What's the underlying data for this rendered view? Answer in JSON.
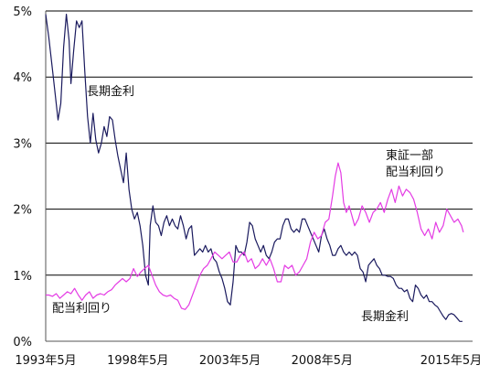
{
  "chart_data": {
    "type": "line",
    "title": "",
    "xlabel": "",
    "ylabel": "",
    "ylim": [
      0,
      5
    ],
    "grid": true,
    "y_ticks": [
      "0%",
      "1%",
      "2%",
      "3%",
      "4%",
      "5%"
    ],
    "y_tick_values": [
      0,
      1,
      2,
      3,
      4,
      5
    ],
    "x_ticks": [
      "1993年5月",
      "1998年5月",
      "2003年5月",
      "2008年5月",
      "2015年5月"
    ],
    "x_tick_values": [
      1993.33,
      1998.33,
      2003.33,
      2008.33,
      2015.33
    ],
    "xlim": [
      1993.33,
      2016.5
    ],
    "annotations": {
      "long_rate_top": "長期金利",
      "long_rate_bottom": "長期金利",
      "dividend_bottom": "配当利回り",
      "tse_line1": "東証一部",
      "tse_line2": "配当利回り"
    },
    "series": [
      {
        "name": "長期金利",
        "color": "#1a1a5e",
        "points": [
          [
            1993.33,
            4.95
          ],
          [
            1993.5,
            4.6
          ],
          [
            1993.7,
            4.1
          ],
          [
            1993.9,
            3.6
          ],
          [
            1994.0,
            3.35
          ],
          [
            1994.15,
            3.6
          ],
          [
            1994.3,
            4.45
          ],
          [
            1994.45,
            4.95
          ],
          [
            1994.6,
            4.55
          ],
          [
            1994.7,
            3.9
          ],
          [
            1994.85,
            4.4
          ],
          [
            1995.0,
            4.85
          ],
          [
            1995.15,
            4.75
          ],
          [
            1995.3,
            4.85
          ],
          [
            1995.45,
            4.1
          ],
          [
            1995.6,
            3.4
          ],
          [
            1995.75,
            3.0
          ],
          [
            1995.9,
            3.45
          ],
          [
            1996.05,
            3.05
          ],
          [
            1996.2,
            2.85
          ],
          [
            1996.35,
            3.0
          ],
          [
            1996.5,
            3.25
          ],
          [
            1996.65,
            3.1
          ],
          [
            1996.8,
            3.4
          ],
          [
            1996.95,
            3.35
          ],
          [
            1997.1,
            3.05
          ],
          [
            1997.25,
            2.8
          ],
          [
            1997.4,
            2.6
          ],
          [
            1997.55,
            2.4
          ],
          [
            1997.7,
            2.85
          ],
          [
            1997.85,
            2.3
          ],
          [
            1998.0,
            2.0
          ],
          [
            1998.15,
            1.85
          ],
          [
            1998.3,
            1.95
          ],
          [
            1998.45,
            1.75
          ],
          [
            1998.6,
            1.45
          ],
          [
            1998.75,
            1.0
          ],
          [
            1998.9,
            0.85
          ],
          [
            1999.0,
            1.75
          ],
          [
            1999.15,
            2.05
          ],
          [
            1999.3,
            1.8
          ],
          [
            1999.45,
            1.75
          ],
          [
            1999.6,
            1.6
          ],
          [
            1999.75,
            1.8
          ],
          [
            1999.9,
            1.9
          ],
          [
            2000.05,
            1.75
          ],
          [
            2000.2,
            1.85
          ],
          [
            2000.35,
            1.75
          ],
          [
            2000.5,
            1.7
          ],
          [
            2000.65,
            1.9
          ],
          [
            2000.8,
            1.75
          ],
          [
            2000.95,
            1.55
          ],
          [
            2001.1,
            1.7
          ],
          [
            2001.25,
            1.75
          ],
          [
            2001.4,
            1.3
          ],
          [
            2001.55,
            1.35
          ],
          [
            2001.7,
            1.4
          ],
          [
            2001.85,
            1.35
          ],
          [
            2002.0,
            1.45
          ],
          [
            2002.15,
            1.35
          ],
          [
            2002.3,
            1.4
          ],
          [
            2002.45,
            1.25
          ],
          [
            2002.6,
            1.2
          ],
          [
            2002.75,
            1.05
          ],
          [
            2002.9,
            0.95
          ],
          [
            2003.05,
            0.8
          ],
          [
            2003.2,
            0.6
          ],
          [
            2003.35,
            0.55
          ],
          [
            2003.5,
            0.9
          ],
          [
            2003.65,
            1.45
          ],
          [
            2003.8,
            1.35
          ],
          [
            2003.95,
            1.35
          ],
          [
            2004.1,
            1.3
          ],
          [
            2004.25,
            1.5
          ],
          [
            2004.4,
            1.8
          ],
          [
            2004.55,
            1.75
          ],
          [
            2004.7,
            1.55
          ],
          [
            2004.85,
            1.45
          ],
          [
            2005.0,
            1.35
          ],
          [
            2005.15,
            1.45
          ],
          [
            2005.3,
            1.3
          ],
          [
            2005.45,
            1.25
          ],
          [
            2005.6,
            1.35
          ],
          [
            2005.75,
            1.5
          ],
          [
            2005.9,
            1.55
          ],
          [
            2006.05,
            1.55
          ],
          [
            2006.2,
            1.75
          ],
          [
            2006.35,
            1.85
          ],
          [
            2006.5,
            1.85
          ],
          [
            2006.65,
            1.7
          ],
          [
            2006.8,
            1.65
          ],
          [
            2006.95,
            1.7
          ],
          [
            2007.1,
            1.65
          ],
          [
            2007.25,
            1.85
          ],
          [
            2007.4,
            1.85
          ],
          [
            2007.55,
            1.75
          ],
          [
            2007.7,
            1.65
          ],
          [
            2007.85,
            1.55
          ],
          [
            2008.0,
            1.45
          ],
          [
            2008.15,
            1.35
          ],
          [
            2008.3,
            1.6
          ],
          [
            2008.45,
            1.7
          ],
          [
            2008.6,
            1.55
          ],
          [
            2008.75,
            1.45
          ],
          [
            2008.9,
            1.3
          ],
          [
            2009.05,
            1.3
          ],
          [
            2009.2,
            1.4
          ],
          [
            2009.35,
            1.45
          ],
          [
            2009.5,
            1.35
          ],
          [
            2009.65,
            1.3
          ],
          [
            2009.8,
            1.35
          ],
          [
            2009.95,
            1.3
          ],
          [
            2010.1,
            1.35
          ],
          [
            2010.25,
            1.3
          ],
          [
            2010.4,
            1.1
          ],
          [
            2010.55,
            1.05
          ],
          [
            2010.7,
            0.9
          ],
          [
            2010.85,
            1.15
          ],
          [
            2011.0,
            1.2
          ],
          [
            2011.15,
            1.25
          ],
          [
            2011.3,
            1.15
          ],
          [
            2011.45,
            1.1
          ],
          [
            2011.6,
            1.0
          ],
          [
            2011.75,
            1.0
          ],
          [
            2011.9,
            0.98
          ],
          [
            2012.05,
            0.98
          ],
          [
            2012.2,
            0.95
          ],
          [
            2012.35,
            0.85
          ],
          [
            2012.5,
            0.8
          ],
          [
            2012.65,
            0.8
          ],
          [
            2012.8,
            0.75
          ],
          [
            2012.95,
            0.78
          ],
          [
            2013.1,
            0.65
          ],
          [
            2013.25,
            0.6
          ],
          [
            2013.4,
            0.85
          ],
          [
            2013.55,
            0.8
          ],
          [
            2013.7,
            0.7
          ],
          [
            2013.85,
            0.65
          ],
          [
            2014.0,
            0.7
          ],
          [
            2014.15,
            0.6
          ],
          [
            2014.3,
            0.6
          ],
          [
            2014.45,
            0.55
          ],
          [
            2014.6,
            0.52
          ],
          [
            2014.75,
            0.45
          ],
          [
            2014.9,
            0.38
          ],
          [
            2015.05,
            0.33
          ],
          [
            2015.2,
            0.4
          ],
          [
            2015.35,
            0.42
          ],
          [
            2015.5,
            0.4
          ],
          [
            2015.65,
            0.35
          ],
          [
            2015.8,
            0.3
          ],
          [
            2015.95,
            0.3
          ]
        ]
      },
      {
        "name": "配当利回り",
        "color": "#e43be4",
        "points": [
          [
            1993.33,
            0.7
          ],
          [
            1993.5,
            0.7
          ],
          [
            1993.7,
            0.68
          ],
          [
            1993.9,
            0.72
          ],
          [
            1994.1,
            0.65
          ],
          [
            1994.3,
            0.7
          ],
          [
            1994.5,
            0.75
          ],
          [
            1994.7,
            0.72
          ],
          [
            1994.9,
            0.8
          ],
          [
            1995.1,
            0.7
          ],
          [
            1995.3,
            0.62
          ],
          [
            1995.5,
            0.7
          ],
          [
            1995.7,
            0.75
          ],
          [
            1995.9,
            0.65
          ],
          [
            1996.1,
            0.7
          ],
          [
            1996.3,
            0.72
          ],
          [
            1996.5,
            0.7
          ],
          [
            1996.7,
            0.75
          ],
          [
            1996.9,
            0.78
          ],
          [
            1997.1,
            0.85
          ],
          [
            1997.3,
            0.9
          ],
          [
            1997.5,
            0.95
          ],
          [
            1997.7,
            0.9
          ],
          [
            1997.9,
            0.95
          ],
          [
            1998.1,
            1.1
          ],
          [
            1998.3,
            0.98
          ],
          [
            1998.5,
            1.05
          ],
          [
            1998.7,
            1.1
          ],
          [
            1998.9,
            1.15
          ],
          [
            1999.1,
            1.0
          ],
          [
            1999.3,
            0.85
          ],
          [
            1999.5,
            0.75
          ],
          [
            1999.7,
            0.7
          ],
          [
            1999.9,
            0.68
          ],
          [
            2000.1,
            0.7
          ],
          [
            2000.3,
            0.65
          ],
          [
            2000.5,
            0.62
          ],
          [
            2000.7,
            0.5
          ],
          [
            2000.9,
            0.48
          ],
          [
            2001.1,
            0.55
          ],
          [
            2001.3,
            0.7
          ],
          [
            2001.5,
            0.85
          ],
          [
            2001.7,
            1.0
          ],
          [
            2001.9,
            1.1
          ],
          [
            2002.1,
            1.15
          ],
          [
            2002.3,
            1.25
          ],
          [
            2002.5,
            1.35
          ],
          [
            2002.7,
            1.3
          ],
          [
            2002.9,
            1.25
          ],
          [
            2003.1,
            1.3
          ],
          [
            2003.3,
            1.35
          ],
          [
            2003.5,
            1.2
          ],
          [
            2003.7,
            1.2
          ],
          [
            2003.9,
            1.3
          ],
          [
            2004.1,
            1.35
          ],
          [
            2004.3,
            1.2
          ],
          [
            2004.5,
            1.25
          ],
          [
            2004.7,
            1.1
          ],
          [
            2004.9,
            1.15
          ],
          [
            2005.1,
            1.25
          ],
          [
            2005.3,
            1.15
          ],
          [
            2005.5,
            1.25
          ],
          [
            2005.7,
            1.1
          ],
          [
            2005.9,
            0.9
          ],
          [
            2006.1,
            0.9
          ],
          [
            2006.3,
            1.15
          ],
          [
            2006.5,
            1.1
          ],
          [
            2006.7,
            1.15
          ],
          [
            2006.9,
            1.0
          ],
          [
            2007.1,
            1.05
          ],
          [
            2007.3,
            1.15
          ],
          [
            2007.5,
            1.25
          ],
          [
            2007.7,
            1.5
          ],
          [
            2007.9,
            1.65
          ],
          [
            2008.1,
            1.55
          ],
          [
            2008.3,
            1.6
          ],
          [
            2008.5,
            1.8
          ],
          [
            2008.7,
            1.85
          ],
          [
            2008.9,
            2.2
          ],
          [
            2009.05,
            2.5
          ],
          [
            2009.2,
            2.7
          ],
          [
            2009.35,
            2.55
          ],
          [
            2009.5,
            2.1
          ],
          [
            2009.65,
            1.95
          ],
          [
            2009.8,
            2.05
          ],
          [
            2009.95,
            1.9
          ],
          [
            2010.1,
            1.75
          ],
          [
            2010.3,
            1.85
          ],
          [
            2010.5,
            2.05
          ],
          [
            2010.7,
            1.95
          ],
          [
            2010.9,
            1.8
          ],
          [
            2011.1,
            1.95
          ],
          [
            2011.3,
            2.0
          ],
          [
            2011.5,
            2.1
          ],
          [
            2011.7,
            1.95
          ],
          [
            2011.9,
            2.15
          ],
          [
            2012.1,
            2.3
          ],
          [
            2012.3,
            2.1
          ],
          [
            2012.5,
            2.35
          ],
          [
            2012.7,
            2.2
          ],
          [
            2012.9,
            2.3
          ],
          [
            2013.1,
            2.25
          ],
          [
            2013.3,
            2.15
          ],
          [
            2013.5,
            1.95
          ],
          [
            2013.7,
            1.7
          ],
          [
            2013.9,
            1.6
          ],
          [
            2014.1,
            1.7
          ],
          [
            2014.3,
            1.55
          ],
          [
            2014.5,
            1.8
          ],
          [
            2014.7,
            1.65
          ],
          [
            2014.9,
            1.75
          ],
          [
            2015.1,
            2.0
          ],
          [
            2015.3,
            1.9
          ],
          [
            2015.5,
            1.8
          ],
          [
            2015.7,
            1.85
          ],
          [
            2015.9,
            1.75
          ],
          [
            2016.0,
            1.65
          ]
        ]
      }
    ]
  }
}
